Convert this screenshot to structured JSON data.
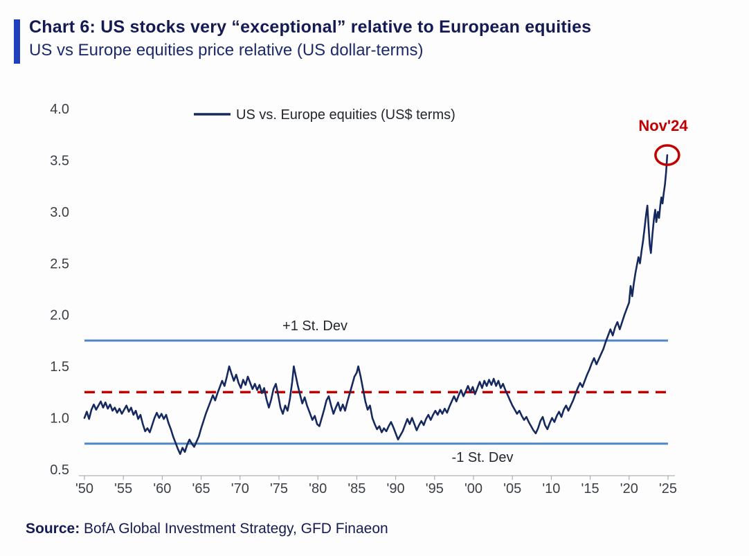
{
  "header": {
    "title": "Chart 6: US stocks very “exceptional” relative to European equities",
    "subtitle": "US vs Europe equities price relative (US dollar-terms)"
  },
  "source": {
    "label": "Source:",
    "text": " BofA Global Investment Strategy, GFD Finaeon"
  },
  "colors": {
    "accent": "#2040c0",
    "series": "#16295f",
    "stdev": "#4f86c6",
    "red": "#c00000",
    "title_color": "#131b52",
    "subtitle_color": "#1c2a6b"
  },
  "chart_data": {
    "type": "line",
    "title": "Chart 6: US stocks very “exceptional” relative to European equities",
    "subtitle": "US vs Europe equities price relative (US dollar-terms)",
    "xlabel": "",
    "ylabel": "",
    "x_range": [
      1950,
      2025
    ],
    "y_range": [
      0.5,
      4.0
    ],
    "grid": false,
    "legend_position": "top-inside",
    "x_ticks": {
      "values": [
        1950,
        1955,
        1960,
        1965,
        1970,
        1975,
        1980,
        1985,
        1990,
        1995,
        2000,
        2005,
        2010,
        2015,
        2020,
        2025
      ],
      "labels": [
        "'50",
        "'55",
        "'60",
        "'65",
        "'70",
        "'75",
        "'80",
        "'85",
        "'90",
        "'95",
        "'00",
        "'05",
        "'10",
        "'15",
        "'20",
        "'25"
      ]
    },
    "y_ticks": {
      "values": [
        4.0,
        3.5,
        3.0,
        2.5,
        2.0,
        1.5,
        1.0,
        0.5
      ],
      "labels": [
        "4.0",
        "3.5",
        "3.0",
        "2.5",
        "2.0",
        "1.5",
        "1.0",
        "0.5"
      ]
    },
    "ref_lines": {
      "plus1": {
        "label": "+1 St. Dev",
        "value": 1.75,
        "style": "solid"
      },
      "minus1": {
        "label": "-1 St. Dev",
        "value": 0.75,
        "style": "solid"
      },
      "mean": {
        "label": "",
        "value": 1.25,
        "style": "dashed"
      }
    },
    "annotation": {
      "label": "Nov'24",
      "x": 2024.9,
      "y": 3.55
    },
    "series": [
      {
        "name": "US vs. Europe equities (US$ terms)",
        "points": [
          [
            1950.0,
            1.0
          ],
          [
            1950.3,
            1.06
          ],
          [
            1950.6,
            0.99
          ],
          [
            1950.9,
            1.08
          ],
          [
            1951.2,
            1.13
          ],
          [
            1951.5,
            1.08
          ],
          [
            1951.8,
            1.12
          ],
          [
            1952.1,
            1.16
          ],
          [
            1952.4,
            1.1
          ],
          [
            1952.7,
            1.15
          ],
          [
            1953.0,
            1.09
          ],
          [
            1953.3,
            1.13
          ],
          [
            1953.6,
            1.07
          ],
          [
            1953.9,
            1.1
          ],
          [
            1954.2,
            1.05
          ],
          [
            1954.5,
            1.09
          ],
          [
            1954.8,
            1.04
          ],
          [
            1955.1,
            1.08
          ],
          [
            1955.4,
            1.12
          ],
          [
            1955.7,
            1.06
          ],
          [
            1956.0,
            1.1
          ],
          [
            1956.3,
            1.03
          ],
          [
            1956.6,
            1.07
          ],
          [
            1956.9,
            0.99
          ],
          [
            1957.2,
            1.03
          ],
          [
            1957.5,
            0.94
          ],
          [
            1957.8,
            0.87
          ],
          [
            1958.1,
            0.9
          ],
          [
            1958.4,
            0.86
          ],
          [
            1958.7,
            0.93
          ],
          [
            1959.0,
            1.0
          ],
          [
            1959.3,
            1.05
          ],
          [
            1959.6,
            1.0
          ],
          [
            1959.9,
            1.04
          ],
          [
            1960.2,
            0.99
          ],
          [
            1960.5,
            1.03
          ],
          [
            1960.8,
            0.95
          ],
          [
            1961.1,
            0.89
          ],
          [
            1961.4,
            0.82
          ],
          [
            1961.7,
            0.76
          ],
          [
            1962.0,
            0.7
          ],
          [
            1962.3,
            0.65
          ],
          [
            1962.6,
            0.71
          ],
          [
            1962.9,
            0.67
          ],
          [
            1963.2,
            0.74
          ],
          [
            1963.5,
            0.79
          ],
          [
            1963.8,
            0.75
          ],
          [
            1964.1,
            0.72
          ],
          [
            1964.4,
            0.77
          ],
          [
            1964.7,
            0.82
          ],
          [
            1965.0,
            0.9
          ],
          [
            1965.3,
            0.97
          ],
          [
            1965.6,
            1.04
          ],
          [
            1965.9,
            1.1
          ],
          [
            1966.2,
            1.16
          ],
          [
            1966.5,
            1.22
          ],
          [
            1966.8,
            1.17
          ],
          [
            1967.1,
            1.24
          ],
          [
            1967.4,
            1.3
          ],
          [
            1967.7,
            1.36
          ],
          [
            1968.0,
            1.31
          ],
          [
            1968.3,
            1.4
          ],
          [
            1968.6,
            1.5
          ],
          [
            1968.9,
            1.43
          ],
          [
            1969.2,
            1.36
          ],
          [
            1969.5,
            1.42
          ],
          [
            1969.8,
            1.34
          ],
          [
            1970.1,
            1.29
          ],
          [
            1970.4,
            1.37
          ],
          [
            1970.7,
            1.32
          ],
          [
            1971.0,
            1.4
          ],
          [
            1971.3,
            1.34
          ],
          [
            1971.6,
            1.28
          ],
          [
            1971.9,
            1.33
          ],
          [
            1972.2,
            1.27
          ],
          [
            1972.5,
            1.32
          ],
          [
            1972.8,
            1.24
          ],
          [
            1973.1,
            1.29
          ],
          [
            1973.4,
            1.18
          ],
          [
            1973.7,
            1.1
          ],
          [
            1974.0,
            1.18
          ],
          [
            1974.3,
            1.28
          ],
          [
            1974.6,
            1.33
          ],
          [
            1974.9,
            1.22
          ],
          [
            1975.2,
            1.1
          ],
          [
            1975.5,
            1.04
          ],
          [
            1975.8,
            1.12
          ],
          [
            1976.1,
            1.07
          ],
          [
            1976.4,
            1.18
          ],
          [
            1976.7,
            1.35
          ],
          [
            1976.9,
            1.5
          ],
          [
            1977.1,
            1.43
          ],
          [
            1977.4,
            1.32
          ],
          [
            1977.7,
            1.23
          ],
          [
            1978.0,
            1.14
          ],
          [
            1978.3,
            1.2
          ],
          [
            1978.6,
            1.12
          ],
          [
            1979.0,
            1.04
          ],
          [
            1979.3,
            0.98
          ],
          [
            1979.6,
            1.02
          ],
          [
            1979.9,
            0.94
          ],
          [
            1980.2,
            0.92
          ],
          [
            1980.5,
            1.0
          ],
          [
            1980.8,
            1.08
          ],
          [
            1981.1,
            1.17
          ],
          [
            1981.4,
            1.21
          ],
          [
            1981.7,
            1.12
          ],
          [
            1982.0,
            1.04
          ],
          [
            1982.3,
            1.1
          ],
          [
            1982.6,
            1.15
          ],
          [
            1982.9,
            1.07
          ],
          [
            1983.2,
            1.13
          ],
          [
            1983.5,
            1.07
          ],
          [
            1983.8,
            1.16
          ],
          [
            1984.1,
            1.24
          ],
          [
            1984.4,
            1.32
          ],
          [
            1984.7,
            1.4
          ],
          [
            1985.0,
            1.44
          ],
          [
            1985.2,
            1.5
          ],
          [
            1985.5,
            1.4
          ],
          [
            1985.8,
            1.28
          ],
          [
            1986.1,
            1.16
          ],
          [
            1986.4,
            1.08
          ],
          [
            1986.7,
            1.12
          ],
          [
            1987.0,
            1.0
          ],
          [
            1987.3,
            0.94
          ],
          [
            1987.6,
            0.89
          ],
          [
            1987.9,
            0.92
          ],
          [
            1988.2,
            0.86
          ],
          [
            1988.5,
            0.9
          ],
          [
            1988.8,
            0.87
          ],
          [
            1989.1,
            0.92
          ],
          [
            1989.4,
            0.96
          ],
          [
            1989.7,
            0.91
          ],
          [
            1990.0,
            0.85
          ],
          [
            1990.3,
            0.79
          ],
          [
            1990.6,
            0.83
          ],
          [
            1990.9,
            0.87
          ],
          [
            1991.2,
            0.93
          ],
          [
            1991.5,
            0.99
          ],
          [
            1991.8,
            0.94
          ],
          [
            1992.1,
            1.0
          ],
          [
            1992.4,
            0.94
          ],
          [
            1992.7,
            0.88
          ],
          [
            1993.0,
            0.93
          ],
          [
            1993.3,
            0.97
          ],
          [
            1993.6,
            0.93
          ],
          [
            1993.9,
            0.99
          ],
          [
            1994.2,
            1.03
          ],
          [
            1994.5,
            0.98
          ],
          [
            1994.8,
            1.03
          ],
          [
            1995.1,
            1.07
          ],
          [
            1995.4,
            1.03
          ],
          [
            1995.7,
            1.08
          ],
          [
            1996.0,
            1.04
          ],
          [
            1996.3,
            1.09
          ],
          [
            1996.6,
            1.05
          ],
          [
            1996.9,
            1.11
          ],
          [
            1997.2,
            1.16
          ],
          [
            1997.5,
            1.21
          ],
          [
            1997.8,
            1.16
          ],
          [
            1998.1,
            1.22
          ],
          [
            1998.4,
            1.27
          ],
          [
            1998.7,
            1.21
          ],
          [
            1999.0,
            1.26
          ],
          [
            1999.3,
            1.31
          ],
          [
            1999.6,
            1.25
          ],
          [
            1999.9,
            1.3
          ],
          [
            2000.2,
            1.23
          ],
          [
            2000.5,
            1.29
          ],
          [
            2000.8,
            1.35
          ],
          [
            2001.1,
            1.29
          ],
          [
            2001.4,
            1.36
          ],
          [
            2001.7,
            1.31
          ],
          [
            2002.0,
            1.37
          ],
          [
            2002.3,
            1.32
          ],
          [
            2002.6,
            1.38
          ],
          [
            2002.9,
            1.31
          ],
          [
            2003.2,
            1.36
          ],
          [
            2003.5,
            1.29
          ],
          [
            2003.8,
            1.33
          ],
          [
            2004.1,
            1.27
          ],
          [
            2004.4,
            1.22
          ],
          [
            2004.7,
            1.17
          ],
          [
            2005.0,
            1.12
          ],
          [
            2005.3,
            1.08
          ],
          [
            2005.6,
            1.04
          ],
          [
            2005.9,
            1.07
          ],
          [
            2006.2,
            1.02
          ],
          [
            2006.5,
            0.98
          ],
          [
            2006.8,
            1.01
          ],
          [
            2007.1,
            0.96
          ],
          [
            2007.4,
            0.92
          ],
          [
            2007.7,
            0.88
          ],
          [
            2008.0,
            0.85
          ],
          [
            2008.3,
            0.9
          ],
          [
            2008.6,
            0.97
          ],
          [
            2008.9,
            1.01
          ],
          [
            2009.2,
            0.93
          ],
          [
            2009.5,
            0.89
          ],
          [
            2009.8,
            0.95
          ],
          [
            2010.1,
            1.0
          ],
          [
            2010.4,
            0.96
          ],
          [
            2010.7,
            1.02
          ],
          [
            2011.0,
            1.06
          ],
          [
            2011.3,
            1.01
          ],
          [
            2011.6,
            1.08
          ],
          [
            2011.9,
            1.12
          ],
          [
            2012.2,
            1.07
          ],
          [
            2012.5,
            1.12
          ],
          [
            2012.8,
            1.17
          ],
          [
            2013.1,
            1.23
          ],
          [
            2013.4,
            1.29
          ],
          [
            2013.7,
            1.34
          ],
          [
            2014.0,
            1.3
          ],
          [
            2014.3,
            1.36
          ],
          [
            2014.6,
            1.42
          ],
          [
            2014.9,
            1.47
          ],
          [
            2015.2,
            1.53
          ],
          [
            2015.5,
            1.58
          ],
          [
            2015.8,
            1.52
          ],
          [
            2016.1,
            1.57
          ],
          [
            2016.4,
            1.62
          ],
          [
            2016.7,
            1.67
          ],
          [
            2017.0,
            1.74
          ],
          [
            2017.3,
            1.8
          ],
          [
            2017.6,
            1.86
          ],
          [
            2017.9,
            1.8
          ],
          [
            2018.2,
            1.88
          ],
          [
            2018.5,
            1.93
          ],
          [
            2018.8,
            1.86
          ],
          [
            2019.1,
            1.93
          ],
          [
            2019.4,
            2.0
          ],
          [
            2019.7,
            2.06
          ],
          [
            2020.0,
            2.12
          ],
          [
            2020.2,
            2.28
          ],
          [
            2020.4,
            2.18
          ],
          [
            2020.6,
            2.3
          ],
          [
            2020.8,
            2.4
          ],
          [
            2021.0,
            2.48
          ],
          [
            2021.2,
            2.56
          ],
          [
            2021.4,
            2.5
          ],
          [
            2021.6,
            2.62
          ],
          [
            2021.8,
            2.72
          ],
          [
            2022.0,
            2.85
          ],
          [
            2022.2,
            2.98
          ],
          [
            2022.35,
            3.06
          ],
          [
            2022.5,
            2.86
          ],
          [
            2022.65,
            2.68
          ],
          [
            2022.8,
            2.6
          ],
          [
            2023.0,
            2.78
          ],
          [
            2023.2,
            2.94
          ],
          [
            2023.35,
            3.02
          ],
          [
            2023.5,
            2.9
          ],
          [
            2023.7,
            3.0
          ],
          [
            2023.85,
            2.94
          ],
          [
            2024.0,
            3.06
          ],
          [
            2024.15,
            3.14
          ],
          [
            2024.3,
            3.08
          ],
          [
            2024.45,
            3.18
          ],
          [
            2024.6,
            3.26
          ],
          [
            2024.75,
            3.38
          ],
          [
            2024.9,
            3.55
          ]
        ]
      }
    ]
  }
}
